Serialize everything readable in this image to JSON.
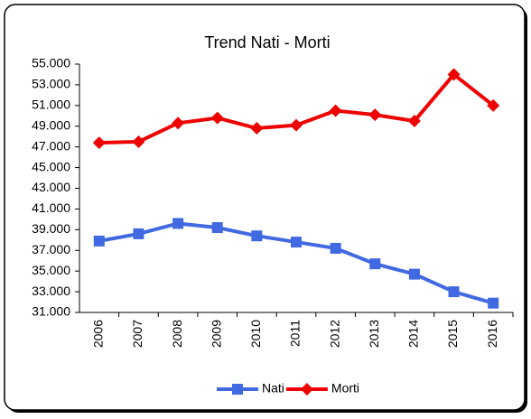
{
  "chart_data": {
    "type": "line",
    "title": "Trend Nati - Morti",
    "categories": [
      "2006",
      "2007",
      "2008",
      "2009",
      "2010",
      "2011",
      "2012",
      "2013",
      "2014",
      "2015",
      "2016"
    ],
    "series": [
      {
        "name": "Nati",
        "color": "#4169e1",
        "marker": "square",
        "values": [
          37900,
          38600,
          39600,
          39200,
          38400,
          37800,
          37200,
          35700,
          34700,
          33000,
          31900
        ]
      },
      {
        "name": "Morti",
        "color": "#ee0000",
        "marker": "diamond",
        "values": [
          47400,
          47500,
          49300,
          49800,
          48800,
          49100,
          50500,
          50100,
          49500,
          54000,
          51000
        ]
      }
    ],
    "ylim": [
      31000,
      55000
    ],
    "yticks": [
      {
        "value": 31000,
        "label": "31.000"
      },
      {
        "value": 33000,
        "label": "33.000"
      },
      {
        "value": 35000,
        "label": "35.000"
      },
      {
        "value": 37000,
        "label": "37.000"
      },
      {
        "value": 39000,
        "label": "39.000"
      },
      {
        "value": 41000,
        "label": "41.000"
      },
      {
        "value": 43000,
        "label": "43.000"
      },
      {
        "value": 45000,
        "label": "45.000"
      },
      {
        "value": 47000,
        "label": "47.000"
      },
      {
        "value": 49000,
        "label": "49.000"
      },
      {
        "value": 51000,
        "label": "51.000"
      },
      {
        "value": 53000,
        "label": "53.000"
      },
      {
        "value": 55000,
        "label": "55.000"
      }
    ],
    "grid": false,
    "legend": "bottom"
  }
}
